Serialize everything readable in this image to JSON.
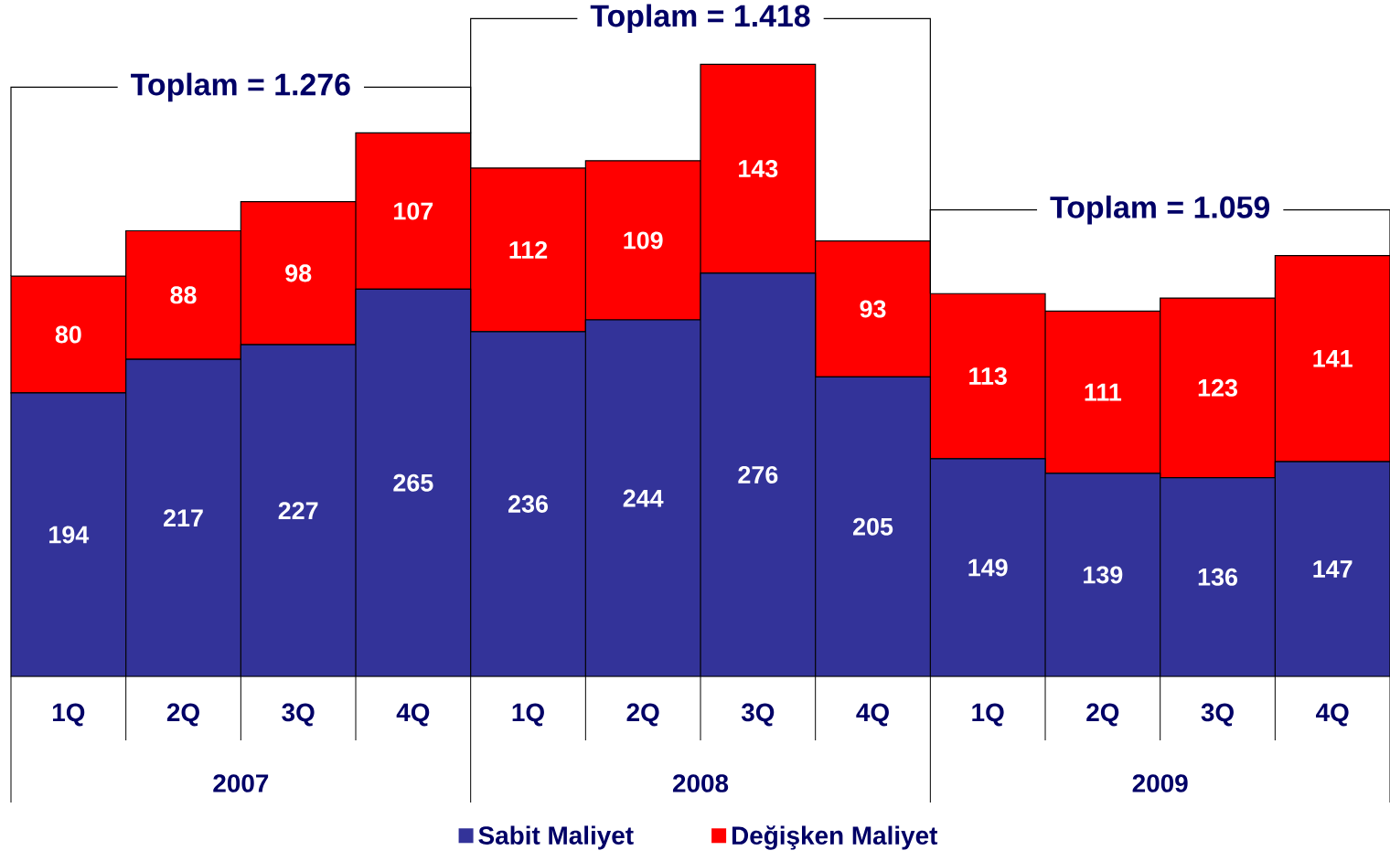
{
  "chart_data": {
    "type": "bar",
    "stacked": true,
    "data_labels": true,
    "legend": "bottom",
    "categories": [
      "1Q",
      "2Q",
      "3Q",
      "4Q",
      "1Q",
      "2Q",
      "3Q",
      "4Q",
      "1Q",
      "2Q",
      "3Q",
      "4Q"
    ],
    "series": [
      {
        "name": "Sabit Maliyet",
        "color": "#333399",
        "values": [
          194,
          217,
          227,
          265,
          236,
          244,
          276,
          205,
          149,
          139,
          136,
          147
        ]
      },
      {
        "name": "Değişken Maliyet",
        "color": "#ff0000",
        "values": [
          80,
          88,
          98,
          107,
          112,
          109,
          143,
          93,
          113,
          111,
          123,
          141
        ]
      }
    ],
    "annotations": [
      "Toplam = 1.276",
      "Toplam = 1.418",
      "Toplam = 1.059",
      "2007",
      "2008",
      "2009"
    ]
  }
}
